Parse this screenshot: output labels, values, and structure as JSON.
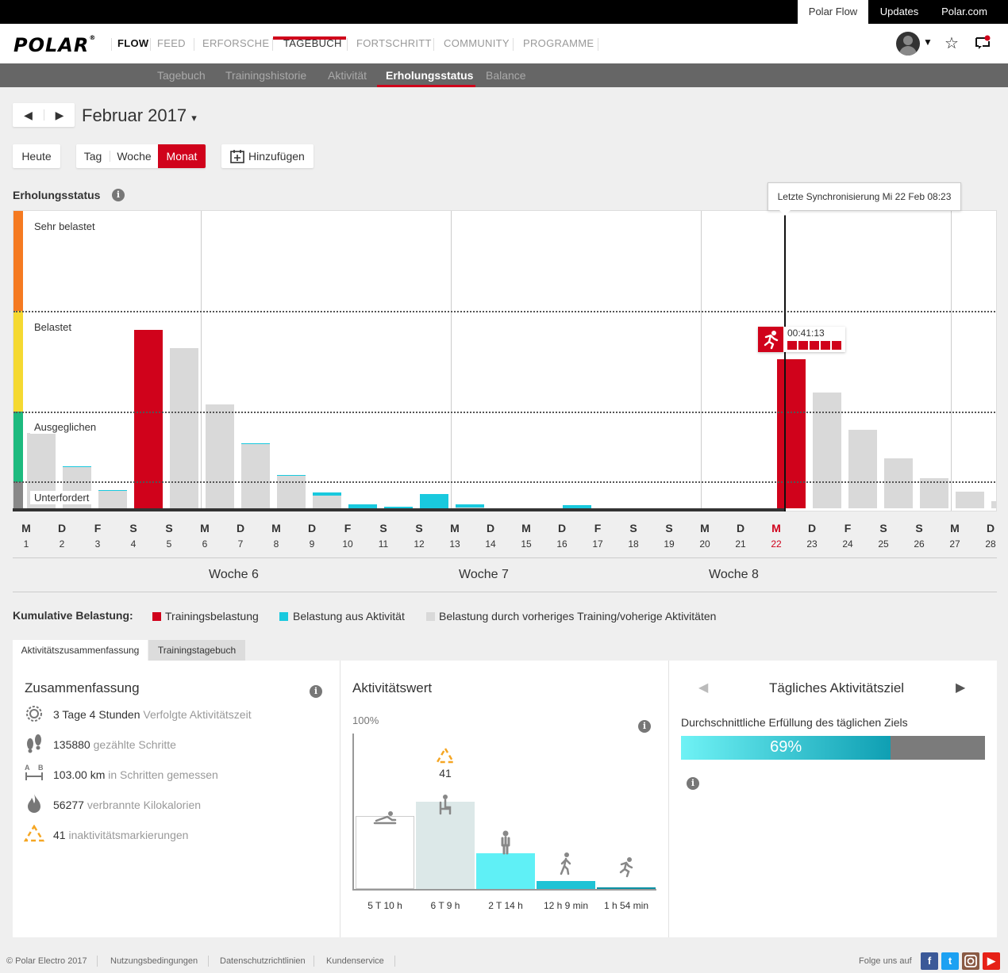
{
  "topbar": {
    "links": [
      "Polar Flow",
      "Updates",
      "Polar.com"
    ]
  },
  "brand": {
    "logo_text": "POLAR",
    "product": "FLOW"
  },
  "nav": {
    "items": [
      "FEED",
      "ERFORSCHE",
      "TAGEBUCH",
      "FORTSCHRITT",
      "COMMUNITY",
      "PROGRAMME"
    ],
    "active": "TAGEBUCH"
  },
  "header_icons": {
    "user": "avatar-icon",
    "dropdown": "caret-down-icon",
    "favorites": "star-icon",
    "sync": "sync-device-icon"
  },
  "subnav": {
    "items": [
      "Tagebuch",
      "Trainingshistorie",
      "Aktivität",
      "Erholungsstatus",
      "Balance"
    ],
    "active": "Erholungsstatus"
  },
  "period": {
    "label": "Februar 2017",
    "caret": "▾"
  },
  "controls": {
    "today": "Heute",
    "views": [
      "Tag",
      "Woche",
      "Monat"
    ],
    "active_view": "Monat",
    "add": "Hinzufügen"
  },
  "recovery": {
    "title": "Erholungsstatus",
    "zones": [
      "Sehr belastet",
      "Belastet",
      "Ausgeglichen",
      "Unterfordert"
    ],
    "sync_tooltip": "Letzte Synchronisierung Mi 22 Feb 08:23",
    "session": {
      "duration": "00:41:13",
      "load_blocks": 5
    },
    "days": [
      {
        "l": "M",
        "n": "1"
      },
      {
        "l": "D",
        "n": "2"
      },
      {
        "l": "F",
        "n": "3"
      },
      {
        "l": "S",
        "n": "4"
      },
      {
        "l": "S",
        "n": "5"
      },
      {
        "l": "M",
        "n": "6"
      },
      {
        "l": "D",
        "n": "7"
      },
      {
        "l": "M",
        "n": "8"
      },
      {
        "l": "D",
        "n": "9"
      },
      {
        "l": "F",
        "n": "10"
      },
      {
        "l": "S",
        "n": "11"
      },
      {
        "l": "S",
        "n": "12"
      },
      {
        "l": "M",
        "n": "13"
      },
      {
        "l": "D",
        "n": "14"
      },
      {
        "l": "M",
        "n": "15"
      },
      {
        "l": "D",
        "n": "16"
      },
      {
        "l": "F",
        "n": "17"
      },
      {
        "l": "S",
        "n": "18"
      },
      {
        "l": "S",
        "n": "19"
      },
      {
        "l": "M",
        "n": "20"
      },
      {
        "l": "D",
        "n": "21"
      },
      {
        "l": "M",
        "n": "22"
      },
      {
        "l": "D",
        "n": "23"
      },
      {
        "l": "F",
        "n": "24"
      },
      {
        "l": "S",
        "n": "25"
      },
      {
        "l": "S",
        "n": "26"
      },
      {
        "l": "M",
        "n": "27"
      },
      {
        "l": "D",
        "n": "28"
      }
    ],
    "today_index": 21,
    "weeks": [
      "Woche 6",
      "Woche 7",
      "Woche 8"
    ]
  },
  "chart_data": {
    "type": "bar",
    "title": "Erholungsstatus",
    "categories": [
      "1",
      "2",
      "3",
      "4",
      "5",
      "6",
      "7",
      "8",
      "9",
      "10",
      "11",
      "12",
      "13",
      "14",
      "15",
      "16",
      "17",
      "18",
      "19",
      "20",
      "21",
      "22",
      "23",
      "24",
      "25",
      "26",
      "27",
      "28"
    ],
    "series": [
      {
        "name": "Trainingsbelastung",
        "color": "#d0021b",
        "values": [
          0,
          0,
          0,
          225,
          0,
          0,
          0,
          0,
          0,
          0,
          0,
          0,
          0,
          0,
          0,
          0,
          0,
          0,
          0,
          0,
          0,
          188,
          0,
          0,
          0,
          0,
          0,
          0
        ]
      },
      {
        "name": "Belastung aus Aktivität",
        "color": "#19c9de",
        "values": [
          0,
          1,
          1,
          0,
          0,
          0,
          1,
          1,
          4,
          5,
          2,
          18,
          4,
          0,
          0,
          4,
          0,
          0,
          0,
          0,
          0,
          0,
          0,
          0,
          0,
          0,
          0,
          0
        ]
      },
      {
        "name": "Belastung durch vorheriges Training/voherige Aktivitäten",
        "color": "#d9d9d9",
        "values": [
          95,
          52,
          22,
          0,
          202,
          131,
          81,
          41,
          16,
          0,
          0,
          0,
          1,
          0,
          0,
          0,
          0,
          0,
          0,
          0,
          0,
          0,
          146,
          99,
          63,
          38,
          21,
          9
        ]
      }
    ],
    "zone_thresholds": [
      33,
      122,
      248,
      375
    ],
    "ylim": [
      0,
      375
    ]
  },
  "legend": {
    "title": "Kumulative Belastung:",
    "items": [
      {
        "label": "Trainingsbelastung",
        "color": "#d0021b"
      },
      {
        "label": "Belastung aus Aktivität",
        "color": "#19c9de"
      },
      {
        "label": "Belastung durch vorheriges Training/voherige Aktivitäten",
        "color": "#d9d9d9"
      }
    ]
  },
  "tabs": [
    "Aktivitätszusammenfassung",
    "Trainingstagebuch"
  ],
  "summary": {
    "title": "Zusammenfassung",
    "rows": [
      {
        "value": "3 Tage 4 Stunden",
        "label": "Verfolgte Aktivitätszeit",
        "icon": "activity-time-icon"
      },
      {
        "value": "135880",
        "label": "gezählte Schritte",
        "icon": "footsteps-icon"
      },
      {
        "value": "103.00 km",
        "label": "in Schritten gemessen",
        "icon": "distance-icon"
      },
      {
        "value": "56277",
        "label": "verbrannte Kilokalorien",
        "icon": "flame-icon"
      },
      {
        "value": "41",
        "label": "inaktivitätsmarkierungen",
        "icon": "inactivity-icon"
      }
    ]
  },
  "activity": {
    "title": "Aktivitätswert",
    "axis_max": "100%",
    "inactivity_count": "41",
    "levels": [
      {
        "label": "5 T 10 h",
        "icon": "resting-icon",
        "color": "#ffffff",
        "share": 0.47
      },
      {
        "label": "6 T 9 h",
        "icon": "sitting-icon",
        "color": "#dce8e8",
        "share": 0.56
      },
      {
        "label": "2 T 14 h",
        "icon": "standing-icon",
        "color": "#5ff0f6",
        "share": 0.23
      },
      {
        "label": "12 h 9 min",
        "icon": "walking-icon",
        "color": "#1fc3d5",
        "share": 0.05
      },
      {
        "label": "1 h 54 min",
        "icon": "running-icon",
        "color": "#0a90a3",
        "share": 0.01
      }
    ]
  },
  "goal": {
    "title": "Tägliches Aktivitätsziel",
    "subtitle": "Durchschnittliche Erfüllung des täglichen Ziels",
    "percent": 69,
    "percent_label": "69%"
  },
  "footer": {
    "copyright": "© Polar Electro 2017",
    "links": [
      "Nutzungsbedingungen",
      "Datenschutzrichtlinien",
      "Kundenservice"
    ],
    "follow": "Folge uns auf",
    "social": [
      "facebook-icon",
      "twitter-icon",
      "instagram-icon",
      "youtube-icon"
    ]
  }
}
